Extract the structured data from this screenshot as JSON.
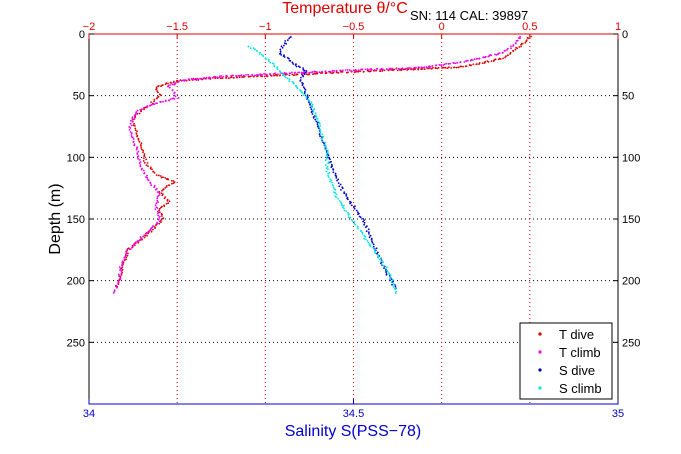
{
  "chart_data": {
    "type": "scatter",
    "title": "Temperature θ/°C",
    "annotation": "SN: 114  CAL: 39897",
    "ylabel": "Depth (m)",
    "xlabel_bottom": "Salinity S(PSS−78)",
    "y_axis": {
      "range": [
        0,
        300
      ],
      "reversed": true,
      "ticks": [
        0,
        50,
        100,
        150,
        200,
        250
      ],
      "tick_labels": [
        "0",
        "50",
        "100",
        "150",
        "200",
        "250"
      ]
    },
    "x_axis_top": {
      "label": "Temperature θ/°C",
      "range": [
        -2,
        1
      ],
      "ticks": [
        -2,
        -1.5,
        -1,
        -0.5,
        0,
        0.5,
        1
      ],
      "tick_labels": [
        "−2",
        "−1.5",
        "−1",
        "−0.5",
        "0",
        "0.5",
        "1"
      ]
    },
    "x_axis_bottom": {
      "label": "Salinity S(PSS−78)",
      "range": [
        34,
        35
      ],
      "ticks": [
        34,
        34.5,
        35
      ],
      "tick_labels": [
        "34",
        "34.5",
        "35"
      ]
    },
    "grid": true,
    "legend_position": "bottom-right",
    "series": [
      {
        "name": "T dive",
        "color": "#dd0000",
        "axis": "temperature",
        "points": [
          [
            0.5,
            2
          ],
          [
            0.48,
            6
          ],
          [
            0.42,
            12
          ],
          [
            0.35,
            20
          ],
          [
            0.1,
            27
          ],
          [
            -0.4,
            30
          ],
          [
            -1.3,
            36
          ],
          [
            -1.5,
            38
          ],
          [
            -1.55,
            40
          ],
          [
            -1.62,
            43
          ],
          [
            -1.6,
            50
          ],
          [
            -1.66,
            58
          ],
          [
            -1.72,
            64
          ],
          [
            -1.75,
            70
          ],
          [
            -1.73,
            80
          ],
          [
            -1.7,
            92
          ],
          [
            -1.68,
            104
          ],
          [
            -1.62,
            114
          ],
          [
            -1.52,
            120
          ],
          [
            -1.6,
            128
          ],
          [
            -1.55,
            136
          ],
          [
            -1.6,
            142
          ],
          [
            -1.58,
            150
          ],
          [
            -1.65,
            160
          ],
          [
            -1.72,
            168
          ],
          [
            -1.78,
            175
          ],
          [
            -1.8,
            185
          ],
          [
            -1.82,
            195
          ],
          [
            -1.84,
            205
          ]
        ]
      },
      {
        "name": "T climb",
        "color": "#ee00ee",
        "axis": "temperature",
        "points": [
          [
            0.45,
            2
          ],
          [
            0.42,
            8
          ],
          [
            0.35,
            15
          ],
          [
            0.15,
            22
          ],
          [
            -0.1,
            27
          ],
          [
            -0.6,
            30
          ],
          [
            -1.2,
            34
          ],
          [
            -1.45,
            37
          ],
          [
            -1.55,
            42
          ],
          [
            -1.52,
            47
          ],
          [
            -1.5,
            52
          ],
          [
            -1.62,
            56
          ],
          [
            -1.72,
            62
          ],
          [
            -1.76,
            70
          ],
          [
            -1.77,
            78
          ],
          [
            -1.74,
            88
          ],
          [
            -1.72,
            100
          ],
          [
            -1.7,
            110
          ],
          [
            -1.65,
            120
          ],
          [
            -1.6,
            130
          ],
          [
            -1.62,
            140
          ],
          [
            -1.6,
            152
          ],
          [
            -1.68,
            162
          ],
          [
            -1.74,
            170
          ],
          [
            -1.8,
            180
          ],
          [
            -1.82,
            190
          ],
          [
            -1.83,
            200
          ],
          [
            -1.86,
            210
          ]
        ]
      },
      {
        "name": "S dive",
        "color": "#0000cc",
        "axis": "salinity",
        "points": [
          [
            34.38,
            2
          ],
          [
            34.37,
            8
          ],
          [
            34.36,
            15
          ],
          [
            34.38,
            22
          ],
          [
            34.41,
            30
          ],
          [
            34.4,
            38
          ],
          [
            34.41,
            48
          ],
          [
            34.42,
            60
          ],
          [
            34.43,
            72
          ],
          [
            34.44,
            84
          ],
          [
            34.45,
            96
          ],
          [
            34.46,
            108
          ],
          [
            34.47,
            118
          ],
          [
            34.48,
            128
          ],
          [
            34.5,
            140
          ],
          [
            34.52,
            152
          ],
          [
            34.53,
            162
          ],
          [
            34.54,
            172
          ],
          [
            34.55,
            182
          ],
          [
            34.56,
            192
          ],
          [
            34.58,
            206
          ]
        ]
      },
      {
        "name": "S climb",
        "color": "#00e5e5",
        "axis": "salinity",
        "points": [
          [
            34.3,
            10
          ],
          [
            34.32,
            14
          ],
          [
            34.34,
            22
          ],
          [
            34.36,
            30
          ],
          [
            34.38,
            38
          ],
          [
            34.4,
            46
          ],
          [
            34.42,
            56
          ],
          [
            34.43,
            68
          ],
          [
            34.44,
            82
          ],
          [
            34.45,
            96
          ],
          [
            34.45,
            110
          ],
          [
            34.46,
            122
          ],
          [
            34.47,
            134
          ],
          [
            34.49,
            146
          ],
          [
            34.51,
            158
          ],
          [
            34.53,
            170
          ],
          [
            34.55,
            182
          ],
          [
            34.57,
            196
          ],
          [
            34.58,
            210
          ]
        ]
      }
    ]
  }
}
